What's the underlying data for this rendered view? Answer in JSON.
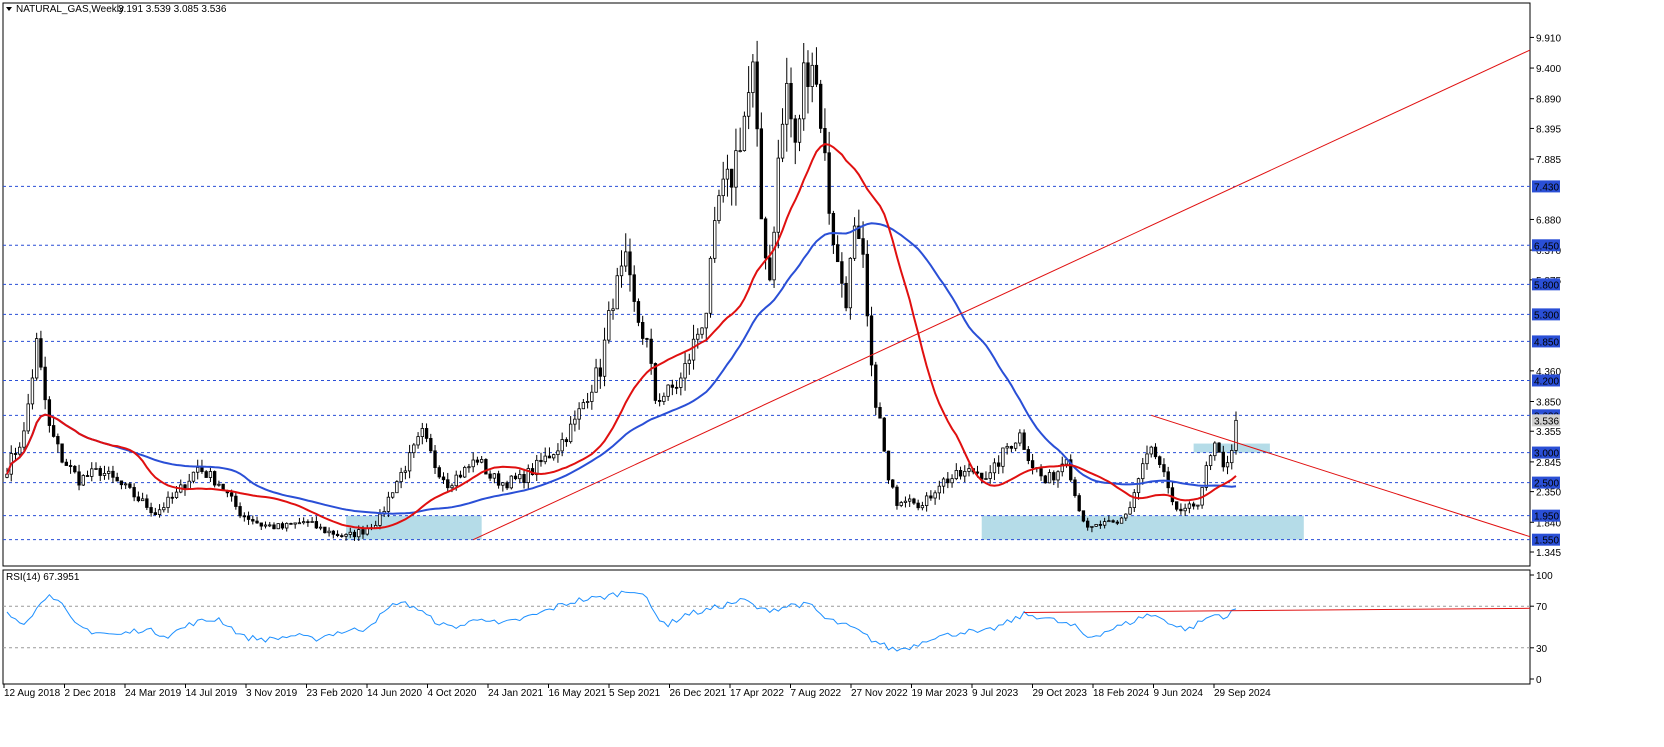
{
  "header": {
    "symbol": "NATURAL_GAS,Weekly",
    "ohlc": "3.191 3.539 3.085 3.536",
    "rsi_label": "RSI(14) 67.3951"
  },
  "colors": {
    "background": "#ffffff",
    "bull_body": "#ffffff",
    "bear_body": "#000000",
    "ma_fast": "#e01010",
    "ma_slow": "#2a4fd6",
    "level_line": "#2a4fd6",
    "zone_fill": "#add8e6",
    "trendline": "#e01010",
    "rsi_line": "#1e90ff",
    "level_label_bg": "#2a4fd6",
    "level_label_text": "#ffffff"
  },
  "chart_data": [
    {
      "type": "candlestick",
      "title": "NATURAL_GAS,Weekly",
      "y_ticks": [
        "9.910",
        "9.400",
        "8.890",
        "8.395",
        "7.885",
        "6.880",
        "6.370",
        "5.875",
        "4.360",
        "3.850",
        "3.355",
        "2.845",
        "2.350",
        "1.840",
        "1.345"
      ],
      "y_range": [
        1.345,
        10.1
      ],
      "x_tick_labels": [
        "12 Aug 2018",
        "2 Dec 2018",
        "24 Mar 2019",
        "14 Jul 2019",
        "3 Nov 2019",
        "23 Feb 2020",
        "14 Jun 2020",
        "4 Oct 2020",
        "24 Jan 2021",
        "16 May 2021",
        "5 Sep 2021",
        "26 Dec 2021",
        "17 Apr 2022",
        "7 Aug 2022",
        "27 Nov 2022",
        "19 Mar 2023",
        "9 Jul 2023",
        "29 Oct 2023",
        "18 Feb 2024",
        "9 Jun 2024",
        "29 Sep 2024"
      ],
      "horizontal_levels": [
        "7.430",
        "6.450",
        "5.800",
        "5.300",
        "4.850",
        "4.200",
        "3.620",
        "3.000",
        "2.500",
        "1.950",
        "1.550"
      ],
      "current_price_label": "3.536",
      "zones": [
        {
          "from_week": 80,
          "to_week": 112,
          "low": 1.55,
          "high": 1.95
        },
        {
          "from_week": 230,
          "to_week": 306,
          "low": 1.55,
          "high": 1.95
        },
        {
          "from_week": 280,
          "to_week": 298,
          "low": 3.0,
          "high": 3.15
        }
      ],
      "trendlines": [
        {
          "from_week": 110,
          "from_price": 1.55,
          "to_week": 361,
          "to_price": 9.7
        },
        {
          "from_week": 270,
          "from_price": 3.62,
          "to_week": 361,
          "to_price": 1.6
        }
      ],
      "anchors": [
        [
          0,
          2.75
        ],
        [
          4,
          3.3
        ],
        [
          7,
          4.8
        ],
        [
          10,
          3.4
        ],
        [
          13,
          2.9
        ],
        [
          17,
          2.55
        ],
        [
          22,
          2.7
        ],
        [
          28,
          2.4
        ],
        [
          35,
          2.0
        ],
        [
          40,
          2.3
        ],
        [
          45,
          2.75
        ],
        [
          50,
          2.5
        ],
        [
          55,
          2.0
        ],
        [
          60,
          1.8
        ],
        [
          65,
          1.75
        ],
        [
          70,
          1.85
        ],
        [
          75,
          1.7
        ],
        [
          80,
          1.6
        ],
        [
          84,
          1.7
        ],
        [
          88,
          1.9
        ],
        [
          91,
          2.4
        ],
        [
          95,
          2.9
        ],
        [
          98,
          3.3
        ],
        [
          101,
          2.8
        ],
        [
          104,
          2.5
        ],
        [
          108,
          2.7
        ],
        [
          111,
          2.9
        ],
        [
          114,
          2.6
        ],
        [
          117,
          2.5
        ],
        [
          121,
          2.55
        ],
        [
          124,
          2.7
        ],
        [
          127,
          2.9
        ],
        [
          130,
          3.1
        ],
        [
          134,
          3.5
        ],
        [
          137,
          4.0
        ],
        [
          140,
          4.4
        ],
        [
          143,
          5.6
        ],
        [
          146,
          6.1
        ],
        [
          148,
          5.4
        ],
        [
          151,
          4.8
        ],
        [
          153,
          3.9
        ],
        [
          156,
          4.0
        ],
        [
          159,
          4.2
        ],
        [
          162,
          4.8
        ],
        [
          165,
          5.4
        ],
        [
          168,
          7.2
        ],
        [
          171,
          7.6
        ],
        [
          174,
          8.6
        ],
        [
          176,
          9.3
        ],
        [
          178,
          6.9
        ],
        [
          180,
          5.9
        ],
        [
          182,
          7.8
        ],
        [
          184,
          9.1
        ],
        [
          186,
          8.0
        ],
        [
          188,
          9.3
        ],
        [
          190,
          9.6
        ],
        [
          192,
          8.6
        ],
        [
          194,
          7.1
        ],
        [
          196,
          6.1
        ],
        [
          198,
          5.6
        ],
        [
          200,
          6.6
        ],
        [
          202,
          6.1
        ],
        [
          204,
          4.3
        ],
        [
          206,
          3.5
        ],
        [
          208,
          2.5
        ],
        [
          210,
          2.2
        ],
        [
          213,
          2.3
        ],
        [
          216,
          2.1
        ],
        [
          220,
          2.5
        ],
        [
          224,
          2.6
        ],
        [
          228,
          2.7
        ],
        [
          232,
          2.6
        ],
        [
          236,
          3.1
        ],
        [
          239,
          3.3
        ],
        [
          242,
          2.8
        ],
        [
          245,
          2.5
        ],
        [
          248,
          2.7
        ],
        [
          250,
          3.0
        ],
        [
          252,
          2.3
        ],
        [
          255,
          1.7
        ],
        [
          258,
          1.8
        ],
        [
          262,
          1.8
        ],
        [
          265,
          2.1
        ],
        [
          268,
          2.8
        ],
        [
          270,
          3.05
        ],
        [
          273,
          2.6
        ],
        [
          275,
          2.1
        ],
        [
          278,
          2.0
        ],
        [
          281,
          2.2
        ],
        [
          283,
          2.7
        ],
        [
          285,
          3.1
        ],
        [
          287,
          2.7
        ],
        [
          289,
          3.1
        ],
        [
          290,
          3.536
        ]
      ],
      "moving_averages": [
        {
          "period": "fast",
          "color": "#e01010"
        },
        {
          "period": "slow",
          "color": "#2a4fd6"
        }
      ]
    },
    {
      "type": "line",
      "title": "RSI(14) 67.3951",
      "y_ticks": [
        "100",
        "70",
        "30",
        "0"
      ],
      "y_range": [
        0,
        100
      ],
      "x_range_weeks": [
        0,
        290
      ],
      "dashed_levels": [
        70,
        30
      ],
      "trendline": {
        "from_week": 240,
        "from_value": 64,
        "to_week": 361,
        "to_value": 68
      },
      "values_key_weeks": [
        [
          0,
          62
        ],
        [
          4,
          55
        ],
        [
          8,
          72
        ],
        [
          10,
          84
        ],
        [
          13,
          70
        ],
        [
          16,
          52
        ],
        [
          20,
          46
        ],
        [
          26,
          42
        ],
        [
          32,
          48
        ],
        [
          38,
          42
        ],
        [
          44,
          54
        ],
        [
          50,
          58
        ],
        [
          56,
          40
        ],
        [
          62,
          38
        ],
        [
          68,
          42
        ],
        [
          72,
          38
        ],
        [
          78,
          45
        ],
        [
          84,
          48
        ],
        [
          88,
          60
        ],
        [
          92,
          74
        ],
        [
          96,
          70
        ],
        [
          100,
          58
        ],
        [
          104,
          50
        ],
        [
          108,
          52
        ],
        [
          112,
          60
        ],
        [
          116,
          52
        ],
        [
          120,
          56
        ],
        [
          125,
          62
        ],
        [
          130,
          70
        ],
        [
          135,
          76
        ],
        [
          140,
          78
        ],
        [
          144,
          82
        ],
        [
          148,
          86
        ],
        [
          150,
          82
        ],
        [
          153,
          62
        ],
        [
          156,
          52
        ],
        [
          160,
          62
        ],
        [
          165,
          66
        ],
        [
          170,
          72
        ],
        [
          174,
          76
        ],
        [
          178,
          66
        ],
        [
          182,
          68
        ],
        [
          186,
          72
        ],
        [
          190,
          70
        ],
        [
          193,
          58
        ],
        [
          196,
          54
        ],
        [
          200,
          48
        ],
        [
          204,
          38
        ],
        [
          208,
          30
        ],
        [
          210,
          28
        ],
        [
          214,
          32
        ],
        [
          218,
          40
        ],
        [
          222,
          42
        ],
        [
          226,
          46
        ],
        [
          230,
          44
        ],
        [
          235,
          52
        ],
        [
          240,
          62
        ],
        [
          244,
          60
        ],
        [
          248,
          55
        ],
        [
          252,
          50
        ],
        [
          255,
          40
        ],
        [
          258,
          44
        ],
        [
          262,
          50
        ],
        [
          266,
          56
        ],
        [
          269,
          62
        ],
        [
          273,
          58
        ],
        [
          276,
          50
        ],
        [
          279,
          48
        ],
        [
          282,
          56
        ],
        [
          285,
          62
        ],
        [
          288,
          60
        ],
        [
          290,
          67.4
        ]
      ]
    }
  ]
}
